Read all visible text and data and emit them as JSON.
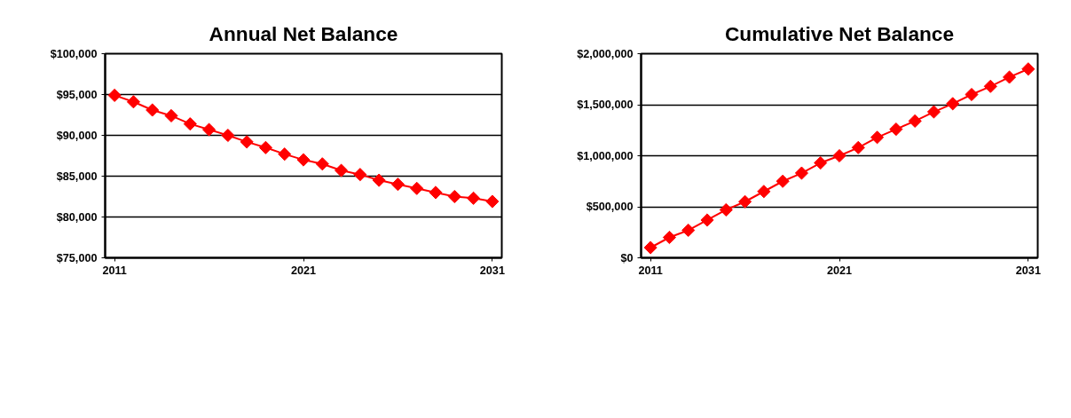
{
  "chart_data": [
    {
      "type": "line",
      "title": "Annual Net Balance",
      "categories": [
        "2011",
        null,
        null,
        null,
        null,
        null,
        null,
        null,
        null,
        null,
        "2021",
        null,
        null,
        null,
        null,
        null,
        null,
        null,
        null,
        null,
        "2031"
      ],
      "series": [
        {
          "color": "#ff0000",
          "values": [
            94900,
            94100,
            93100,
            92400,
            91400,
            90700,
            90000,
            89200,
            88500,
            87700,
            87000,
            86500,
            85700,
            85200,
            84500,
            84000,
            83500,
            83000,
            82500,
            82300,
            81900
          ]
        }
      ],
      "ylim": [
        75000,
        100000
      ],
      "yticks": [
        {
          "value": 75000,
          "label": "$75,000"
        },
        {
          "value": 80000,
          "label": "$80,000"
        },
        {
          "value": 85000,
          "label": "$85,000"
        },
        {
          "value": 90000,
          "label": "$90,000"
        },
        {
          "value": 95000,
          "label": "$95,000"
        },
        {
          "value": 100000,
          "label": "$100,000"
        }
      ],
      "grid": "y",
      "marker": "diamond",
      "line_style": "solid"
    },
    {
      "type": "line",
      "title": "Cumulative Net Balance",
      "categories": [
        "2011",
        null,
        null,
        null,
        null,
        null,
        null,
        null,
        null,
        null,
        "2021",
        null,
        null,
        null,
        null,
        null,
        null,
        null,
        null,
        null,
        "2031"
      ],
      "series": [
        {
          "color": "#ff0000",
          "values": [
            100000,
            200000,
            270000,
            370000,
            470000,
            550000,
            650000,
            750000,
            830000,
            930000,
            1000000,
            1080000,
            1180000,
            1260000,
            1340000,
            1430000,
            1510000,
            1600000,
            1680000,
            1770000,
            1850000
          ]
        }
      ],
      "ylim": [
        0,
        2000000
      ],
      "yticks": [
        {
          "value": 0,
          "label": "$0"
        },
        {
          "value": 500000,
          "label": "$500,000"
        },
        {
          "value": 1000000,
          "label": "$1,000,000"
        },
        {
          "value": 1500000,
          "label": "$1,500,000"
        },
        {
          "value": 2000000,
          "label": "$2,000,000"
        }
      ],
      "grid": "y",
      "marker": "diamond",
      "line_style": "solid"
    }
  ]
}
